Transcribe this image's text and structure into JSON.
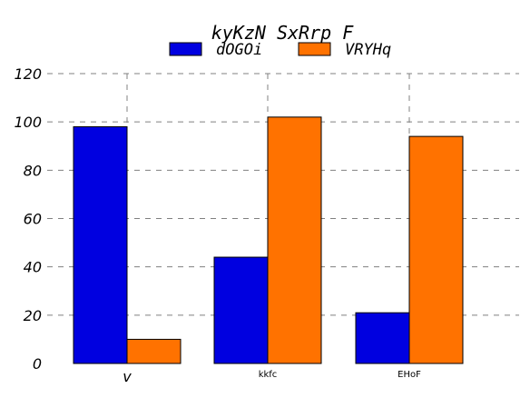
{
  "chart_data": {
    "type": "bar",
    "title": "kyKzN  SxRrp F",
    "categories": [
      "v",
      "kkfc",
      "EHoF"
    ],
    "series": [
      {
        "name": "dOGOi",
        "values": [
          98,
          44,
          21
        ],
        "color": "#0000e0"
      },
      {
        "name": "VRYHq",
        "values": [
          10,
          102,
          94
        ],
        "color": "#ff7200"
      }
    ],
    "yticks": [
      "0",
      "20",
      "40",
      "60",
      "80",
      "100",
      "120"
    ],
    "ylim": [
      0,
      120
    ],
    "xlabel": "",
    "ylabel": "",
    "grid": true,
    "legend_position": "top-center"
  }
}
